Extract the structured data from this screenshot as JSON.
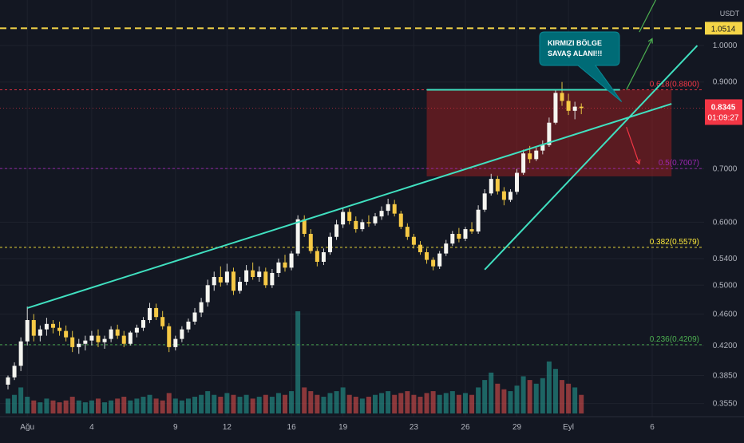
{
  "chart_data": {
    "type": "candlestick",
    "title": "",
    "currency_label": "USDT",
    "y_scale": "log",
    "ylim": [
      0.345,
      1.12
    ],
    "price_ticks": [
      {
        "value": 1.0,
        "label": "1.0000"
      },
      {
        "value": 0.9,
        "label": "0.9000"
      },
      {
        "value": 0.7,
        "label": "0.7000"
      },
      {
        "value": 0.6,
        "label": "0.6000"
      },
      {
        "value": 0.54,
        "label": "0.5400"
      },
      {
        "value": 0.5,
        "label": "0.5000"
      },
      {
        "value": 0.46,
        "label": "0.4600"
      },
      {
        "value": 0.42,
        "label": "0.4200"
      },
      {
        "value": 0.385,
        "label": "0.3850"
      },
      {
        "value": 0.355,
        "label": "0.3550"
      }
    ],
    "x_ticks": [
      {
        "label": "Ağu",
        "bar": 3
      },
      {
        "label": "4",
        "bar": 13
      },
      {
        "label": "9",
        "bar": 26
      },
      {
        "label": "12",
        "bar": 34
      },
      {
        "label": "16",
        "bar": 44
      },
      {
        "label": "19",
        "bar": 52
      },
      {
        "label": "23",
        "bar": 63
      },
      {
        "label": "26",
        "bar": 71
      },
      {
        "label": "29",
        "bar": 79
      },
      {
        "label": "Eyl",
        "bar": 87
      },
      {
        "label": "6",
        "bar": 100
      }
    ],
    "fib_levels": [
      {
        "ratio": "0.236",
        "value": 0.4209,
        "label": "0.236(0.4209)",
        "color": "#4caf50"
      },
      {
        "ratio": "0.382",
        "value": 0.5579,
        "label": "0.382(0.5579)",
        "color": "#ffeb3b"
      },
      {
        "ratio": "0.5",
        "value": 0.7007,
        "label": "0.5(0.7007)",
        "color": "#9c27b0"
      },
      {
        "ratio": "0.618",
        "value": 0.88,
        "label": "0.618(0.8800)",
        "color": "#f23645"
      }
    ],
    "target_level": {
      "value": 1.0514,
      "label": "1.0514",
      "color": "#f5d547"
    },
    "current_price": {
      "value": 0.8345,
      "label": "0.8345",
      "countdown": "01:09:27",
      "color": "#f23645"
    },
    "annotation": {
      "line1": "KIRMIZI BÖLGE",
      "line2": "SAVAŞ ALANI!!!"
    },
    "red_zone": {
      "bar_start": 65,
      "bar_end": 103,
      "price_low": 0.685,
      "price_high": 0.88,
      "color": "#f23645"
    },
    "upper_trendline": {
      "bar_start": 3,
      "price_start": 0.468,
      "bar_end": 103,
      "price_end": 0.845
    },
    "lower_trendline": {
      "bar_start": 74,
      "price_start": 0.523,
      "bar_end": 107,
      "price_end": 1.0
    },
    "resistance_line": {
      "bar_start": 65,
      "bar_end": 95,
      "price": 0.88
    },
    "arrows": [
      {
        "name": "green-up-arrow-1",
        "bar_start": 96,
        "price_start": 0.88,
        "bar_end": 100,
        "price_end": 1.02,
        "color": "#4caf50"
      },
      {
        "name": "green-up-arrow-2",
        "bar_start": 98,
        "price_start": 1.04,
        "bar_end": 101,
        "price_end": 1.16,
        "color": "#4caf50"
      },
      {
        "name": "red-down-arrow",
        "bar_start": 96,
        "price_start": 0.79,
        "bar_end": 98,
        "price_end": 0.71,
        "color": "#f23645"
      }
    ],
    "candles": [
      [
        0.375,
        0.385,
        0.37,
        0.383
      ],
      [
        0.383,
        0.4,
        0.38,
        0.396
      ],
      [
        0.396,
        0.43,
        0.39,
        0.425
      ],
      [
        0.425,
        0.47,
        0.42,
        0.452
      ],
      [
        0.452,
        0.46,
        0.425,
        0.432
      ],
      [
        0.432,
        0.445,
        0.425,
        0.44
      ],
      [
        0.44,
        0.455,
        0.432,
        0.447
      ],
      [
        0.447,
        0.452,
        0.435,
        0.442
      ],
      [
        0.442,
        0.45,
        0.432,
        0.438
      ],
      [
        0.438,
        0.445,
        0.425,
        0.43
      ],
      [
        0.43,
        0.438,
        0.412,
        0.418
      ],
      [
        0.418,
        0.428,
        0.41,
        0.422
      ],
      [
        0.422,
        0.432,
        0.414,
        0.426
      ],
      [
        0.426,
        0.438,
        0.42,
        0.432
      ],
      [
        0.432,
        0.44,
        0.418,
        0.424
      ],
      [
        0.424,
        0.432,
        0.416,
        0.428
      ],
      [
        0.428,
        0.444,
        0.424,
        0.44
      ],
      [
        0.44,
        0.446,
        0.428,
        0.432
      ],
      [
        0.432,
        0.438,
        0.418,
        0.422
      ],
      [
        0.422,
        0.438,
        0.42,
        0.436
      ],
      [
        0.436,
        0.446,
        0.43,
        0.442
      ],
      [
        0.442,
        0.456,
        0.438,
        0.452
      ],
      [
        0.452,
        0.475,
        0.448,
        0.468
      ],
      [
        0.468,
        0.474,
        0.452,
        0.456
      ],
      [
        0.456,
        0.464,
        0.44,
        0.444
      ],
      [
        0.444,
        0.448,
        0.412,
        0.418
      ],
      [
        0.418,
        0.432,
        0.414,
        0.428
      ],
      [
        0.428,
        0.444,
        0.424,
        0.44
      ],
      [
        0.44,
        0.454,
        0.436,
        0.45
      ],
      [
        0.45,
        0.468,
        0.446,
        0.462
      ],
      [
        0.462,
        0.482,
        0.456,
        0.476
      ],
      [
        0.476,
        0.508,
        0.47,
        0.5
      ],
      [
        0.5,
        0.52,
        0.492,
        0.512
      ],
      [
        0.512,
        0.528,
        0.498,
        0.504
      ],
      [
        0.504,
        0.532,
        0.5,
        0.52
      ],
      [
        0.52,
        0.526,
        0.486,
        0.492
      ],
      [
        0.492,
        0.512,
        0.488,
        0.505
      ],
      [
        0.505,
        0.53,
        0.5,
        0.522
      ],
      [
        0.522,
        0.534,
        0.508,
        0.512
      ],
      [
        0.512,
        0.528,
        0.505,
        0.52
      ],
      [
        0.52,
        0.526,
        0.496,
        0.5
      ],
      [
        0.5,
        0.524,
        0.496,
        0.518
      ],
      [
        0.518,
        0.54,
        0.512,
        0.534
      ],
      [
        0.534,
        0.546,
        0.52,
        0.526
      ],
      [
        0.526,
        0.552,
        0.522,
        0.548
      ],
      [
        0.548,
        0.612,
        0.544,
        0.605
      ],
      [
        0.605,
        0.612,
        0.575,
        0.58
      ],
      [
        0.58,
        0.588,
        0.548,
        0.552
      ],
      [
        0.552,
        0.556,
        0.528,
        0.535
      ],
      [
        0.535,
        0.556,
        0.53,
        0.55
      ],
      [
        0.55,
        0.582,
        0.546,
        0.575
      ],
      [
        0.575,
        0.604,
        0.57,
        0.596
      ],
      [
        0.596,
        0.626,
        0.59,
        0.618
      ],
      [
        0.618,
        0.624,
        0.596,
        0.602
      ],
      [
        0.602,
        0.61,
        0.582,
        0.588
      ],
      [
        0.588,
        0.605,
        0.584,
        0.6
      ],
      [
        0.6,
        0.612,
        0.592,
        0.598
      ],
      [
        0.598,
        0.616,
        0.594,
        0.61
      ],
      [
        0.61,
        0.628,
        0.604,
        0.62
      ],
      [
        0.62,
        0.642,
        0.612,
        0.632
      ],
      [
        0.632,
        0.64,
        0.61,
        0.615
      ],
      [
        0.615,
        0.62,
        0.588,
        0.592
      ],
      [
        0.592,
        0.598,
        0.57,
        0.575
      ],
      [
        0.575,
        0.58,
        0.556,
        0.562
      ],
      [
        0.562,
        0.568,
        0.546,
        0.55
      ],
      [
        0.55,
        0.556,
        0.532,
        0.538
      ],
      [
        0.538,
        0.542,
        0.522,
        0.528
      ],
      [
        0.528,
        0.552,
        0.524,
        0.548
      ],
      [
        0.548,
        0.57,
        0.544,
        0.564
      ],
      [
        0.564,
        0.585,
        0.56,
        0.58
      ],
      [
        0.58,
        0.59,
        0.566,
        0.572
      ],
      [
        0.572,
        0.592,
        0.568,
        0.588
      ],
      [
        0.588,
        0.6,
        0.58,
        0.584
      ],
      [
        0.584,
        0.63,
        0.58,
        0.622
      ],
      [
        0.622,
        0.66,
        0.618,
        0.652
      ],
      [
        0.652,
        0.69,
        0.648,
        0.68
      ],
      [
        0.68,
        0.686,
        0.65,
        0.656
      ],
      [
        0.656,
        0.664,
        0.63,
        0.64
      ],
      [
        0.64,
        0.66,
        0.636,
        0.655
      ],
      [
        0.655,
        0.7,
        0.65,
        0.692
      ],
      [
        0.692,
        0.74,
        0.688,
        0.732
      ],
      [
        0.732,
        0.748,
        0.712,
        0.72
      ],
      [
        0.72,
        0.744,
        0.716,
        0.738
      ],
      [
        0.738,
        0.76,
        0.73,
        0.75
      ],
      [
        0.75,
        0.812,
        0.746,
        0.8
      ],
      [
        0.8,
        0.88,
        0.796,
        0.872
      ],
      [
        0.872,
        0.9,
        0.84,
        0.852
      ],
      [
        0.852,
        0.87,
        0.818,
        0.828
      ],
      [
        0.828,
        0.85,
        0.808,
        0.838
      ],
      [
        0.838,
        0.846,
        0.82,
        0.8345
      ]
    ],
    "volumes": [
      8,
      10,
      14,
      9,
      7,
      6,
      8,
      7,
      6,
      7,
      9,
      7,
      6,
      7,
      8,
      6,
      7,
      8,
      9,
      7,
      8,
      9,
      10,
      8,
      7,
      11,
      8,
      7,
      8,
      9,
      10,
      12,
      10,
      9,
      11,
      10,
      9,
      10,
      8,
      9,
      10,
      9,
      11,
      10,
      12,
      55,
      14,
      12,
      10,
      9,
      11,
      12,
      14,
      10,
      9,
      8,
      9,
      10,
      11,
      12,
      10,
      11,
      12,
      10,
      9,
      11,
      12,
      10,
      11,
      12,
      10,
      11,
      10,
      14,
      18,
      22,
      16,
      13,
      12,
      15,
      20,
      18,
      16,
      19,
      28,
      24,
      18,
      16,
      14,
      10
    ]
  }
}
